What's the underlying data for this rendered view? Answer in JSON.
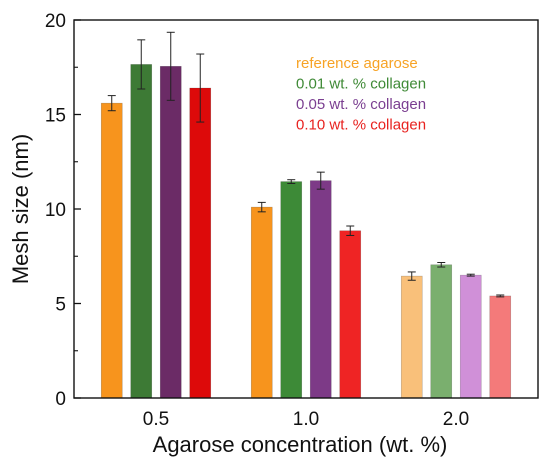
{
  "chart_data": {
    "type": "bar",
    "xlabel": "Agarose concentration (wt. %)",
    "ylabel": "Mesh size (nm)",
    "ylim": [
      0,
      20
    ],
    "yticks": [
      0,
      5,
      10,
      15,
      20
    ],
    "categories": [
      "0.5",
      "1.0",
      "2.0"
    ],
    "legend_position": "top-right",
    "series": [
      {
        "name": "reference agarose",
        "values": [
          15.6,
          10.1,
          6.45
        ],
        "errors": [
          0.4,
          0.25,
          0.22
        ],
        "colors": [
          "#f7941d",
          "#f7941d",
          "#f9c07a"
        ],
        "legend_color": "#f7a325"
      },
      {
        "name": "0.01 wt. % collagen",
        "values": [
          17.65,
          11.45,
          7.05
        ],
        "errors": [
          1.3,
          0.1,
          0.12
        ],
        "colors": [
          "#3d7a35",
          "#3d8a37",
          "#7aaf6e"
        ],
        "legend_color": "#3f8a36"
      },
      {
        "name": "0.05 wt. % collagen",
        "values": [
          17.55,
          11.5,
          6.5
        ],
        "errors": [
          1.8,
          0.45,
          0.05
        ],
        "colors": [
          "#6b2b66",
          "#7d3a87",
          "#d090d8"
        ],
        "legend_color": "#7b3f91"
      },
      {
        "name": "0.10 wt. % collagen",
        "values": [
          16.4,
          8.85,
          5.4
        ],
        "errors": [
          1.8,
          0.25,
          0.05
        ],
        "colors": [
          "#dd0a0a",
          "#ef2424",
          "#f47a7a"
        ],
        "legend_color": "#e8221f"
      }
    ]
  }
}
